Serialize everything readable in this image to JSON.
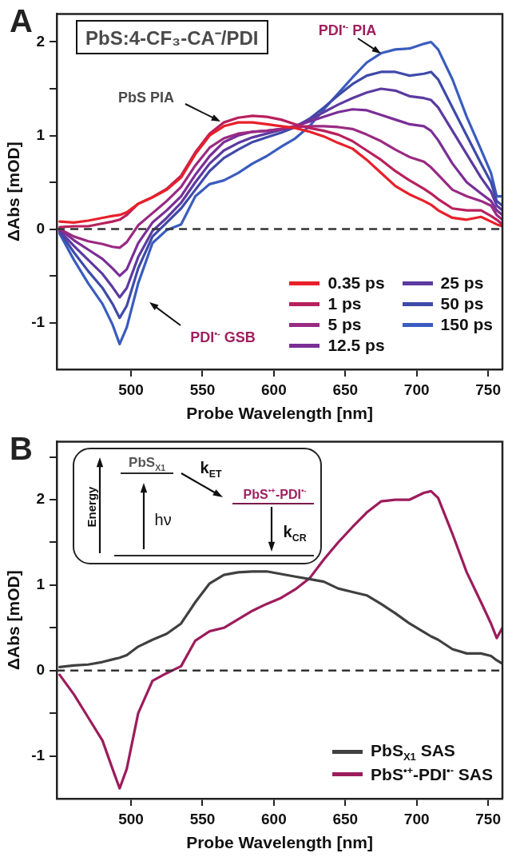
{
  "chart_data": [
    {
      "type": "line",
      "title": "PbS:4-CF₃-CA⁻/PDI",
      "xlabel": "Probe Wavelength [nm]",
      "ylabel": "ΔAbs [mOD]",
      "x": [
        450,
        460,
        470,
        480,
        487,
        492,
        497,
        505,
        515,
        525,
        535,
        545,
        555,
        565,
        575,
        585,
        595,
        605,
        615,
        625,
        635,
        645,
        655,
        665,
        675,
        685,
        695,
        705,
        710,
        715,
        725,
        735,
        745,
        752,
        756,
        760
      ],
      "series": [
        {
          "name": "0.35 ps",
          "color": "#e8202a",
          "values": [
            0.08,
            0.07,
            0.09,
            0.12,
            0.14,
            0.15,
            0.18,
            0.27,
            0.34,
            0.42,
            0.55,
            0.8,
            1.0,
            1.1,
            1.14,
            1.14,
            1.12,
            1.1,
            1.08,
            1.04,
            0.99,
            0.92,
            0.86,
            0.74,
            0.6,
            0.46,
            0.37,
            0.3,
            0.26,
            0.2,
            0.12,
            0.1,
            0.13,
            0.08,
            0.05,
            0.03
          ]
        },
        {
          "name": "1 ps",
          "color": "#b8205c",
          "values": [
            0.02,
            0.03,
            0.03,
            0.06,
            0.08,
            0.1,
            0.15,
            0.27,
            0.34,
            0.43,
            0.57,
            0.82,
            1.02,
            1.14,
            1.19,
            1.21,
            1.2,
            1.17,
            1.12,
            1.08,
            1.05,
            1.01,
            0.94,
            0.84,
            0.74,
            0.62,
            0.52,
            0.43,
            0.38,
            0.32,
            0.22,
            0.2,
            0.2,
            0.14,
            0.1,
            0.05
          ]
        },
        {
          "name": "5 ps",
          "color": "#9a2a82",
          "values": [
            0.0,
            -0.08,
            -0.13,
            -0.16,
            -0.19,
            -0.2,
            -0.14,
            0.04,
            0.17,
            0.3,
            0.45,
            0.68,
            0.87,
            0.97,
            1.02,
            1.04,
            1.05,
            1.07,
            1.09,
            1.1,
            1.1,
            1.09,
            1.07,
            1.01,
            0.94,
            0.85,
            0.77,
            0.72,
            0.66,
            0.58,
            0.42,
            0.35,
            0.3,
            0.25,
            0.15,
            0.1
          ]
        },
        {
          "name": "12.5 ps",
          "color": "#7a2e96",
          "values": [
            0.0,
            -0.12,
            -0.22,
            -0.32,
            -0.42,
            -0.5,
            -0.43,
            -0.15,
            0.07,
            0.2,
            0.35,
            0.58,
            0.78,
            0.93,
            1.0,
            1.04,
            1.05,
            1.07,
            1.1,
            1.15,
            1.2,
            1.25,
            1.28,
            1.27,
            1.22,
            1.17,
            1.12,
            1.1,
            1.05,
            0.95,
            0.7,
            0.5,
            0.38,
            0.3,
            0.2,
            0.15
          ]
        },
        {
          "name": "25 ps",
          "color": "#5c3aa0",
          "values": [
            -0.02,
            -0.18,
            -0.33,
            -0.48,
            -0.62,
            -0.73,
            -0.63,
            -0.3,
            -0.02,
            0.12,
            0.28,
            0.5,
            0.7,
            0.84,
            0.92,
            0.98,
            1.02,
            1.06,
            1.1,
            1.17,
            1.25,
            1.33,
            1.4,
            1.46,
            1.5,
            1.48,
            1.42,
            1.4,
            1.38,
            1.3,
            1.05,
            0.8,
            0.55,
            0.4,
            0.25,
            0.2
          ]
        },
        {
          "name": "50 ps",
          "color": "#3f4aa8",
          "values": [
            -0.03,
            -0.25,
            -0.45,
            -0.63,
            -0.8,
            -0.95,
            -0.82,
            -0.42,
            -0.08,
            0.07,
            0.22,
            0.42,
            0.62,
            0.76,
            0.85,
            0.93,
            0.98,
            1.03,
            1.09,
            1.18,
            1.3,
            1.43,
            1.55,
            1.64,
            1.68,
            1.68,
            1.64,
            1.66,
            1.68,
            1.6,
            1.3,
            1.0,
            0.7,
            0.5,
            0.3,
            0.25
          ]
        },
        {
          "name": "150 ps",
          "color": "#3a5cbf",
          "values": [
            -0.05,
            -0.33,
            -0.58,
            -0.8,
            -1.02,
            -1.23,
            -1.05,
            -0.58,
            -0.15,
            -0.01,
            0.05,
            0.35,
            0.48,
            0.52,
            0.6,
            0.7,
            0.78,
            0.88,
            0.97,
            1.1,
            1.28,
            1.45,
            1.62,
            1.78,
            1.88,
            1.92,
            1.93,
            1.98,
            2.0,
            1.92,
            1.6,
            1.2,
            0.85,
            0.6,
            0.35,
            0.35
          ]
        }
      ],
      "xlim": [
        448,
        760
      ],
      "xticks": [
        500,
        550,
        600,
        650,
        700,
        750
      ],
      "ylim": [
        -1.5,
        2.3
      ],
      "yticks": [
        -1,
        {
          "value": -0.5,
          "label": null
        },
        0,
        {
          "value": 0.5,
          "label": null
        },
        1,
        {
          "value": 1.5,
          "label": null
        },
        2
      ],
      "ref_lines": [
        {
          "axis": "y",
          "value": 0,
          "line_style": "dashed",
          "color": "#333333"
        }
      ],
      "legend": "bottom right",
      "grid": false,
      "annotations": [
        "A",
        "PbS PIA",
        "PDI$^{•-}$ PIA",
        "PDI$^{•-}$ GSB"
      ]
    },
    {
      "type": "line",
      "xlabel": "Probe Wavelength [nm]",
      "ylabel": "ΔAbs [mOD]",
      "x": [
        450,
        460,
        470,
        480,
        487,
        492,
        497,
        505,
        515,
        525,
        535,
        545,
        555,
        565,
        575,
        585,
        595,
        605,
        615,
        625,
        635,
        645,
        655,
        665,
        675,
        685,
        695,
        705,
        710,
        715,
        725,
        735,
        745,
        752,
        756,
        760
      ],
      "series": [
        {
          "name": "PbS$_{X1}$ SAS",
          "color": "#404040",
          "values": [
            0.04,
            0.06,
            0.07,
            0.1,
            0.13,
            0.15,
            0.18,
            0.28,
            0.36,
            0.43,
            0.55,
            0.8,
            1.02,
            1.12,
            1.15,
            1.16,
            1.16,
            1.13,
            1.1,
            1.07,
            1.04,
            0.96,
            0.92,
            0.88,
            0.78,
            0.67,
            0.55,
            0.45,
            0.4,
            0.36,
            0.25,
            0.2,
            0.2,
            0.17,
            0.12,
            0.08
          ]
        },
        {
          "name": "PbS$^{•+}$-PDI$^{•-}$ SAS",
          "color": "#9c1c5c",
          "values": [
            -0.05,
            -0.28,
            -0.55,
            -0.82,
            -1.15,
            -1.38,
            -1.15,
            -0.5,
            -0.12,
            -0.03,
            0.05,
            0.35,
            0.46,
            0.5,
            0.6,
            0.7,
            0.78,
            0.85,
            0.95,
            1.08,
            1.3,
            1.5,
            1.68,
            1.85,
            1.98,
            2.0,
            2.0,
            2.08,
            2.1,
            2.02,
            1.6,
            1.15,
            0.8,
            0.55,
            0.38,
            0.5
          ]
        }
      ],
      "xlim": [
        448,
        760
      ],
      "xticks": [
        500,
        550,
        600,
        650,
        700,
        750
      ],
      "ylim": [
        -1.5,
        2.68
      ],
      "yticks": [
        -1,
        {
          "value": -0.5,
          "label": null
        },
        0,
        {
          "value": 0.5,
          "label": null
        },
        1,
        {
          "value": 1.5,
          "label": null
        },
        2,
        {
          "value": 2.5,
          "label": null
        }
      ],
      "ref_lines": [
        {
          "axis": "y",
          "value": 0,
          "line_style": "dashed",
          "color": "#333333"
        }
      ],
      "legend": "bottom right",
      "grid": false,
      "annotations": [
        "B",
        "Energy",
        "PbS$_{X1}$",
        "k$_{ET}$",
        "PbS$^{•+}$-PDI$^{•-}$",
        "hν",
        "k$_{CR}$"
      ]
    }
  ]
}
